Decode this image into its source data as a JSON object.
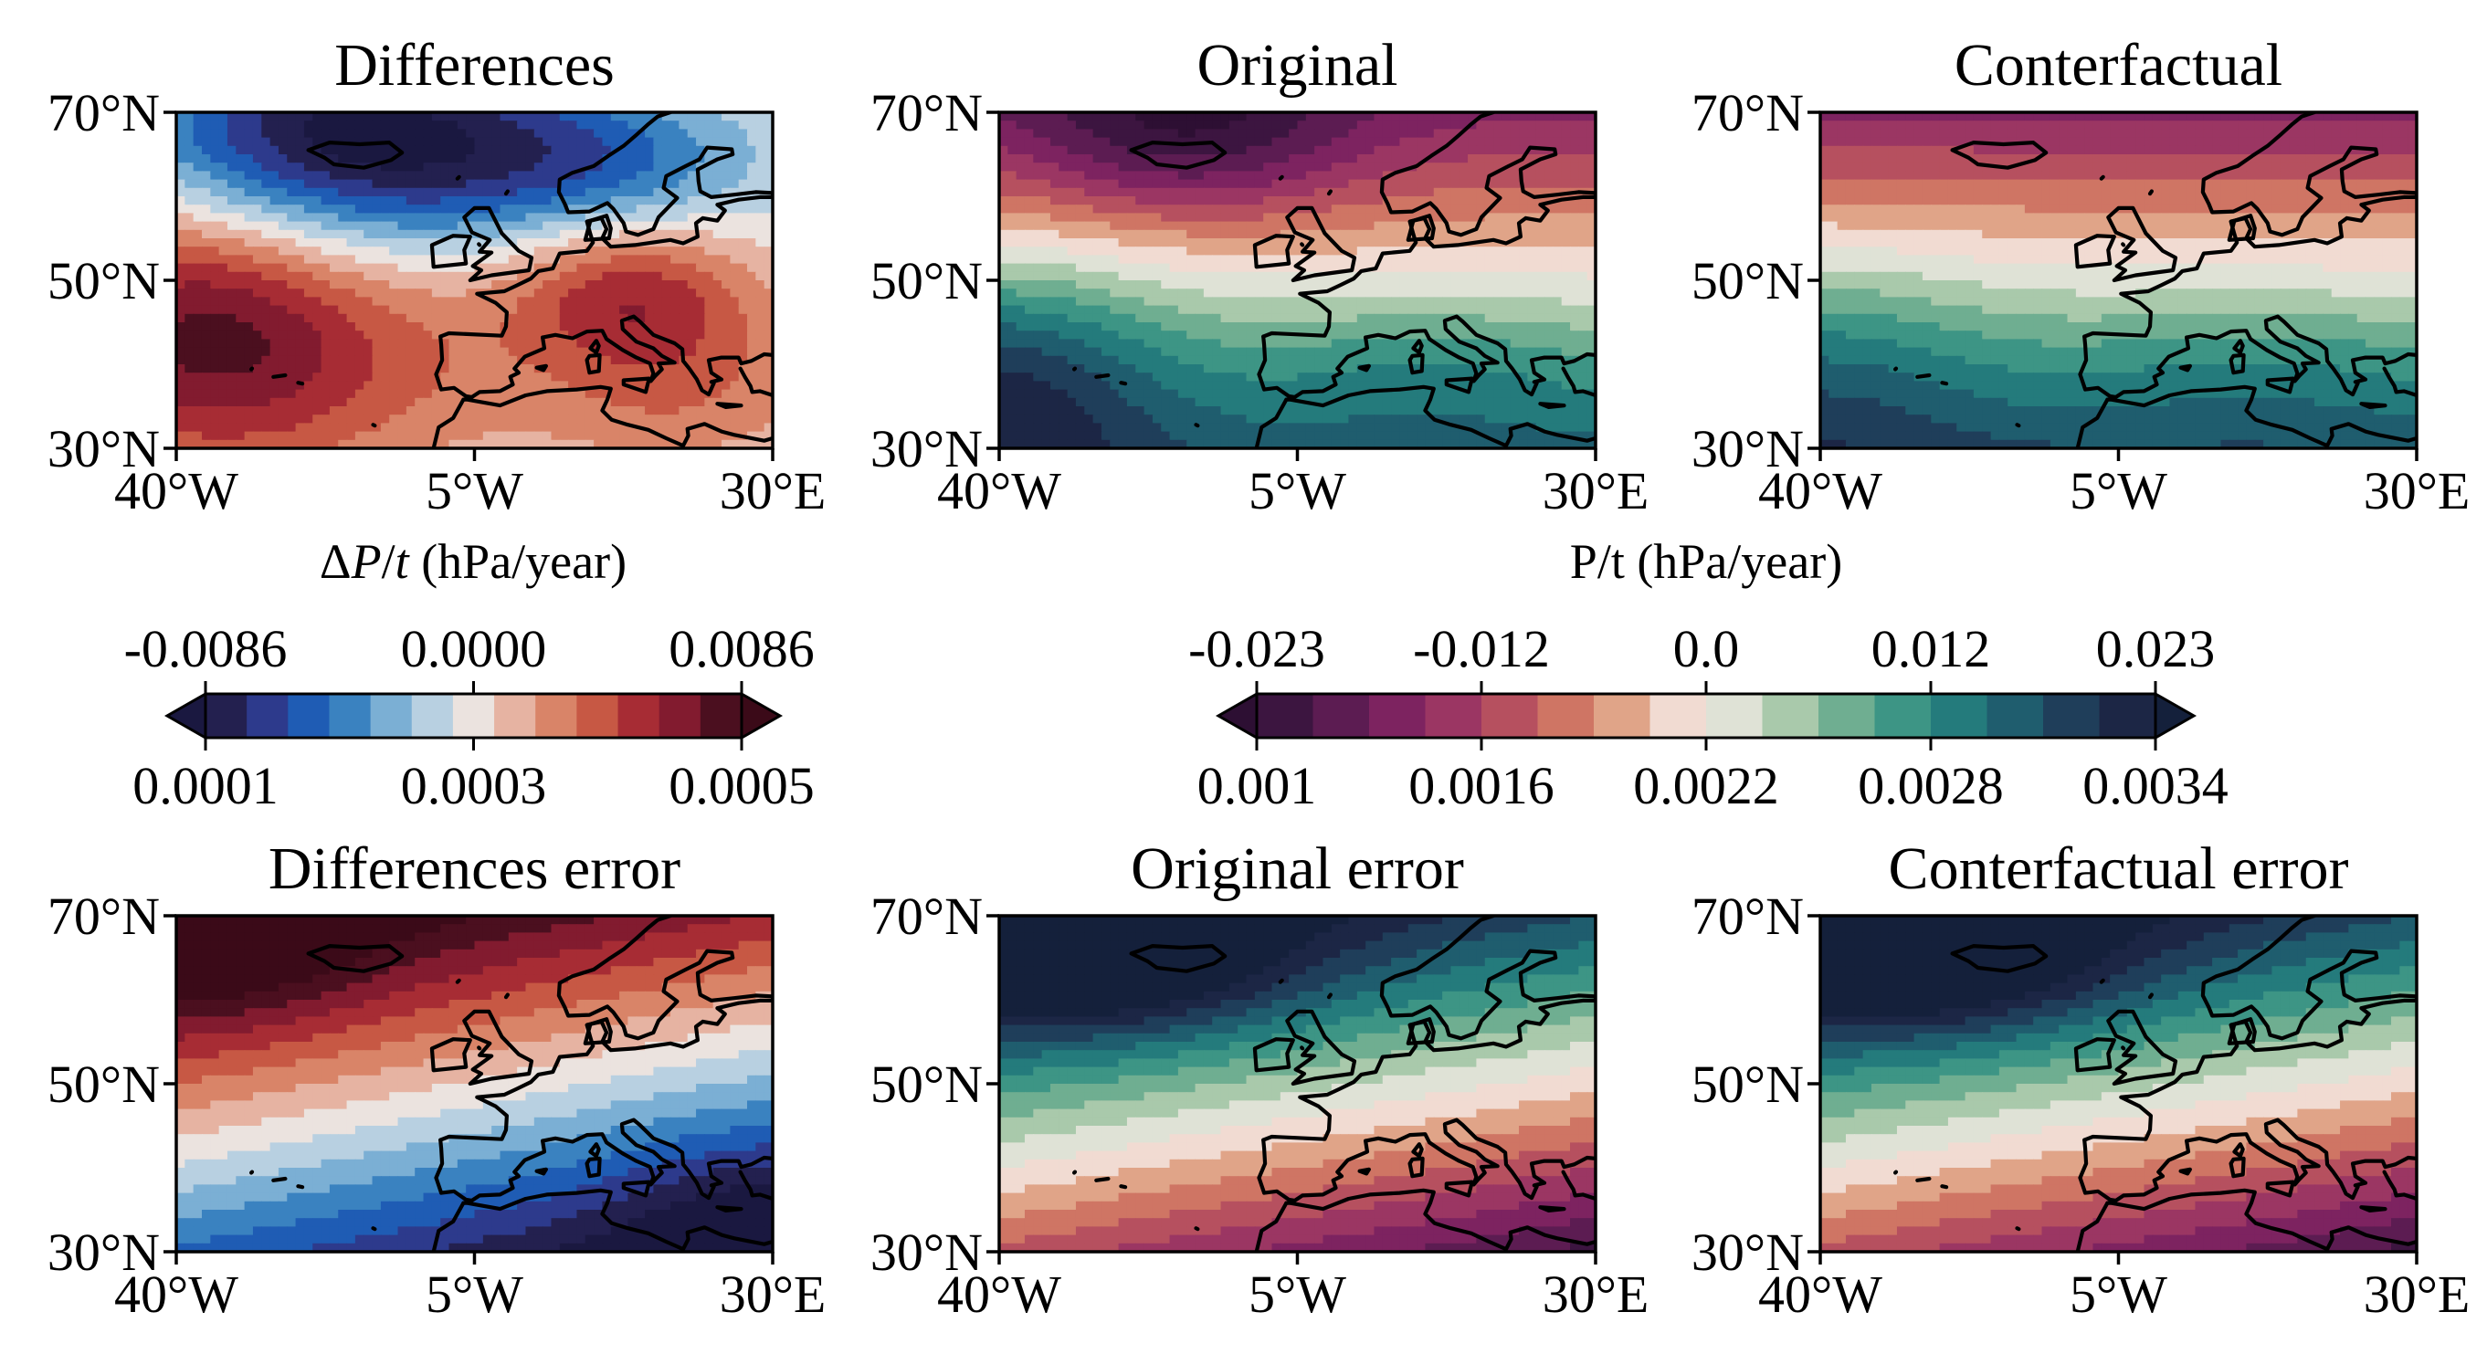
{
  "figure": {
    "colorbars": {
      "difference": {
        "label": "ΔP/t (hPa/year)",
        "top_ticks": [
          "-0.0086",
          "0.0000",
          "0.0086"
        ],
        "bottom_ticks": [
          "0.0001",
          "0.0003",
          "0.0005"
        ],
        "colors": [
          "#23204f",
          "#2d3a8c",
          "#1f5cb4",
          "#3a82c0",
          "#7bafd4",
          "#b8d0e1",
          "#ebe3df",
          "#e6b3a2",
          "#d98468",
          "#c75844",
          "#a72c34",
          "#821b2f",
          "#4b0f1f"
        ]
      },
      "value": {
        "label": "P/t (hPa/year)",
        "top_ticks": [
          "-0.023",
          "-0.012",
          "0.0",
          "0.012",
          "0.023"
        ],
        "bottom_ticks": [
          "0.001",
          "0.0016",
          "0.0022",
          "0.0028",
          "0.0034"
        ],
        "colors": [
          "#3c1540",
          "#5c1c52",
          "#7d2360",
          "#9b3663",
          "#b6505f",
          "#cf7564",
          "#e0a488",
          "#f1dbd2",
          "#dfe2d6",
          "#a9c9ab",
          "#6fae91",
          "#3d9585",
          "#247b7c",
          "#1f5d6e",
          "#1f3e5a",
          "#1c2645"
        ]
      }
    },
    "extend_colors": {
      "difference_low": "#1a1840",
      "difference_high": "#3b0a18",
      "value_low": "#2d0f33",
      "value_high": "#14203b"
    }
  },
  "chart_data": [
    {
      "type": "heatmap",
      "title": "Differences",
      "row": "top",
      "colorbar": "difference",
      "xlim": [
        -40,
        30
      ],
      "ylim": [
        30,
        70
      ],
      "x_ticks": [
        "40°W",
        "5°W",
        "30°E"
      ],
      "y_ticks": [
        "70°N",
        "50°N",
        "30°N"
      ],
      "field": {
        "base": 0.0,
        "components": [
          {
            "lon": -20,
            "lat": 67,
            "amp": -0.0095,
            "sx": 18,
            "sy": 9
          },
          {
            "lon": 10,
            "lat": 64,
            "amp": -0.004,
            "sx": 14,
            "sy": 6
          },
          {
            "lon": -38,
            "lat": 45,
            "amp": 0.006,
            "sx": 14,
            "sy": 12
          },
          {
            "lon": -20,
            "lat": 40,
            "amp": 0.003,
            "sx": 20,
            "sy": 10
          },
          {
            "lon": 13,
            "lat": 49,
            "amp": 0.0045,
            "sx": 10,
            "sy": 6
          },
          {
            "lon": 20,
            "lat": 38,
            "amp": 0.003,
            "sx": 12,
            "sy": 8
          }
        ]
      }
    },
    {
      "type": "heatmap",
      "title": "Original",
      "row": "top",
      "colorbar": "value",
      "xlim": [
        -40,
        30
      ],
      "ylim": [
        30,
        70
      ],
      "x_ticks": [
        "40°W",
        "5°W",
        "30°E"
      ],
      "y_ticks": [
        "70°N",
        "50°N",
        "30°N"
      ],
      "field": {
        "base": 0.0,
        "lat_gradient": -0.00075,
        "lat_ref": 50,
        "components": [
          {
            "lon": -18,
            "lat": 67,
            "amp": -0.01,
            "sx": 14,
            "sy": 7
          },
          {
            "lon": -40,
            "lat": 39,
            "amp": 0.012,
            "sx": 14,
            "sy": 10
          },
          {
            "lon": 10,
            "lat": 40,
            "amp": 0.004,
            "sx": 15,
            "sy": 6
          }
        ]
      }
    },
    {
      "type": "heatmap",
      "title": "Conterfactual",
      "row": "top",
      "colorbar": "value",
      "xlim": [
        -40,
        30
      ],
      "ylim": [
        30,
        70
      ],
      "x_ticks": [
        "40°W",
        "5°W",
        "30°E"
      ],
      "y_ticks": [
        "70°N",
        "50°N",
        "30°N"
      ],
      "field": {
        "base": 0.0,
        "lat_gradient": -0.0008,
        "lat_ref": 51,
        "components": [
          {
            "lon": -40,
            "lat": 40,
            "amp": 0.006,
            "sx": 14,
            "sy": 10
          },
          {
            "lon": 10,
            "lat": 40,
            "amp": 0.003,
            "sx": 15,
            "sy": 6
          }
        ]
      }
    },
    {
      "type": "heatmap",
      "title": "Differences error",
      "row": "bottom",
      "colorbar": "difference",
      "xlim": [
        -40,
        30
      ],
      "ylim": [
        30,
        70
      ],
      "x_ticks": [
        "40°W",
        "5°W",
        "30°E"
      ],
      "y_ticks": [
        "70°N",
        "50°N",
        "30°N"
      ],
      "field": {
        "base": 0.00031,
        "lat_gradient": 9.5e-06,
        "lat_ref": 50,
        "lat_shift_per_lon": -0.2,
        "components": [
          {
            "lon": -35,
            "lat": 66,
            "amp": 6e-05,
            "sx": 12,
            "sy": 6
          },
          {
            "lon": 25,
            "lat": 34,
            "amp": -4e-05,
            "sx": 10,
            "sy": 6
          }
        ]
      }
    },
    {
      "type": "heatmap",
      "title": "Original error",
      "row": "bottom",
      "colorbar": "value",
      "xlim": [
        -40,
        30
      ],
      "ylim": [
        30,
        70
      ],
      "x_ticks": [
        "40°W",
        "5°W",
        "30°E"
      ],
      "y_ticks": [
        "70°N",
        "50°N",
        "30°N"
      ],
      "field": {
        "base": 0.0022,
        "lat_gradient": 5e-05,
        "lat_ref": 46,
        "lat_shift_per_lon": -0.17,
        "components": [
          {
            "lon": -28,
            "lat": 64,
            "amp": 0.0006,
            "sx": 16,
            "sy": 6
          }
        ]
      }
    },
    {
      "type": "heatmap",
      "title": "Conterfactual error",
      "row": "bottom",
      "colorbar": "value",
      "xlim": [
        -40,
        30
      ],
      "ylim": [
        30,
        70
      ],
      "x_ticks": [
        "40°W",
        "5°W",
        "30°E"
      ],
      "y_ticks": [
        "70°N",
        "50°N",
        "30°N"
      ],
      "field": {
        "base": 0.0022,
        "lat_gradient": 5e-05,
        "lat_ref": 46,
        "lat_shift_per_lon": -0.17,
        "components": [
          {
            "lon": -28,
            "lat": 64,
            "amp": 0.0006,
            "sx": 16,
            "sy": 6
          }
        ]
      }
    }
  ]
}
